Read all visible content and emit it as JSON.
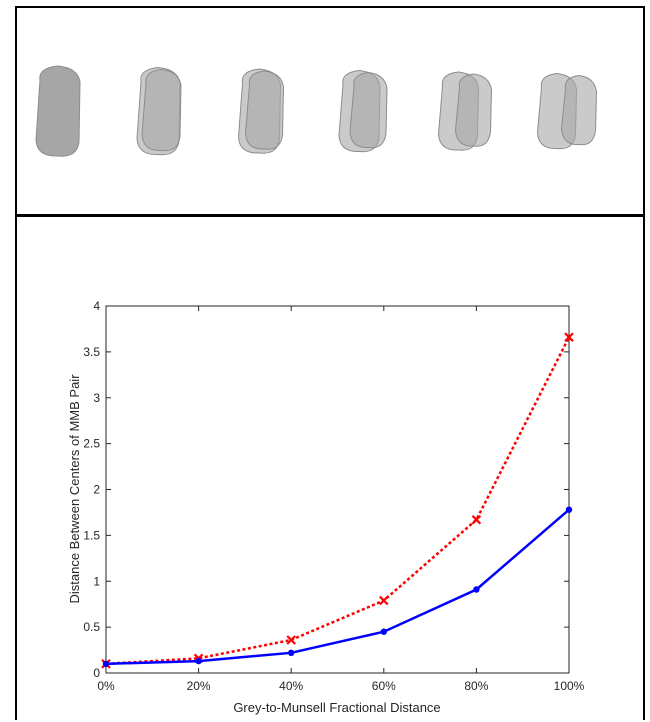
{
  "chart_data": {
    "type": "line",
    "title": "",
    "xlabel": "Grey-to-Munsell Fractional Distance",
    "ylabel": "Distance Between Centers of MMB Pair",
    "categories": [
      "0%",
      "20%",
      "40%",
      "60%",
      "80%",
      "100%"
    ],
    "x": [
      0,
      20,
      40,
      60,
      80,
      100
    ],
    "ylim": [
      0,
      4
    ],
    "xlim": [
      0,
      100
    ],
    "yticks": [
      "0",
      "0.5",
      "1",
      "1.5",
      "2",
      "2.5",
      "3",
      "3.5",
      "4"
    ],
    "yticks_values": [
      0,
      0.5,
      1,
      1.5,
      2,
      2.5,
      3,
      3.5,
      4
    ],
    "grid": false,
    "legend": "none",
    "series": [
      {
        "values": [
          0.1,
          0.16,
          0.36,
          0.79,
          1.67,
          3.66
        ],
        "color": "#ff0000",
        "line": "dotted",
        "marker": "x"
      },
      {
        "values": [
          0.1,
          0.13,
          0.22,
          0.45,
          0.91,
          1.78
        ],
        "color": "#0000ff",
        "line": "solid",
        "marker": "dot"
      }
    ]
  },
  "shapes_row": {
    "blob_count": 6,
    "body_color": "#a6a6a6",
    "edge_color": "#8c8c8c"
  }
}
